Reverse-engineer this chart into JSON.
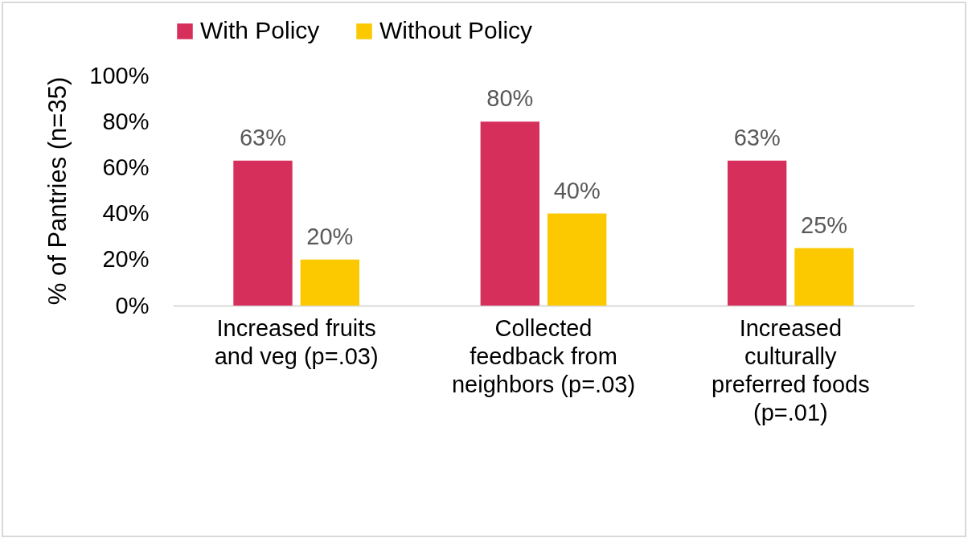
{
  "chart_data": {
    "type": "bar",
    "ylabel": "% of Pantries (n=35)",
    "categories": [
      "Increased fruits and veg (p=.03)",
      "Collected feedback from neighbors (p=.03)",
      "Increased culturally preferred foods (p=.01)"
    ],
    "series": [
      {
        "name": "With Policy",
        "color": "#d62f5c",
        "values": [
          63,
          80,
          63
        ],
        "value_labels": [
          "63%",
          "80%",
          "63%"
        ]
      },
      {
        "name": "Without Policy",
        "color": "#fcc800",
        "values": [
          20,
          40,
          25
        ],
        "value_labels": [
          "20%",
          "40%",
          "25%"
        ]
      }
    ],
    "ylim": [
      0,
      100
    ],
    "yticks": [
      {
        "value": 0,
        "label": "0%"
      },
      {
        "value": 20,
        "label": "20%"
      },
      {
        "value": 40,
        "label": "40%"
      },
      {
        "value": 60,
        "label": "60%"
      },
      {
        "value": 80,
        "label": "80%"
      },
      {
        "value": 100,
        "label": "100%"
      }
    ],
    "grid": false,
    "legend": "top"
  }
}
